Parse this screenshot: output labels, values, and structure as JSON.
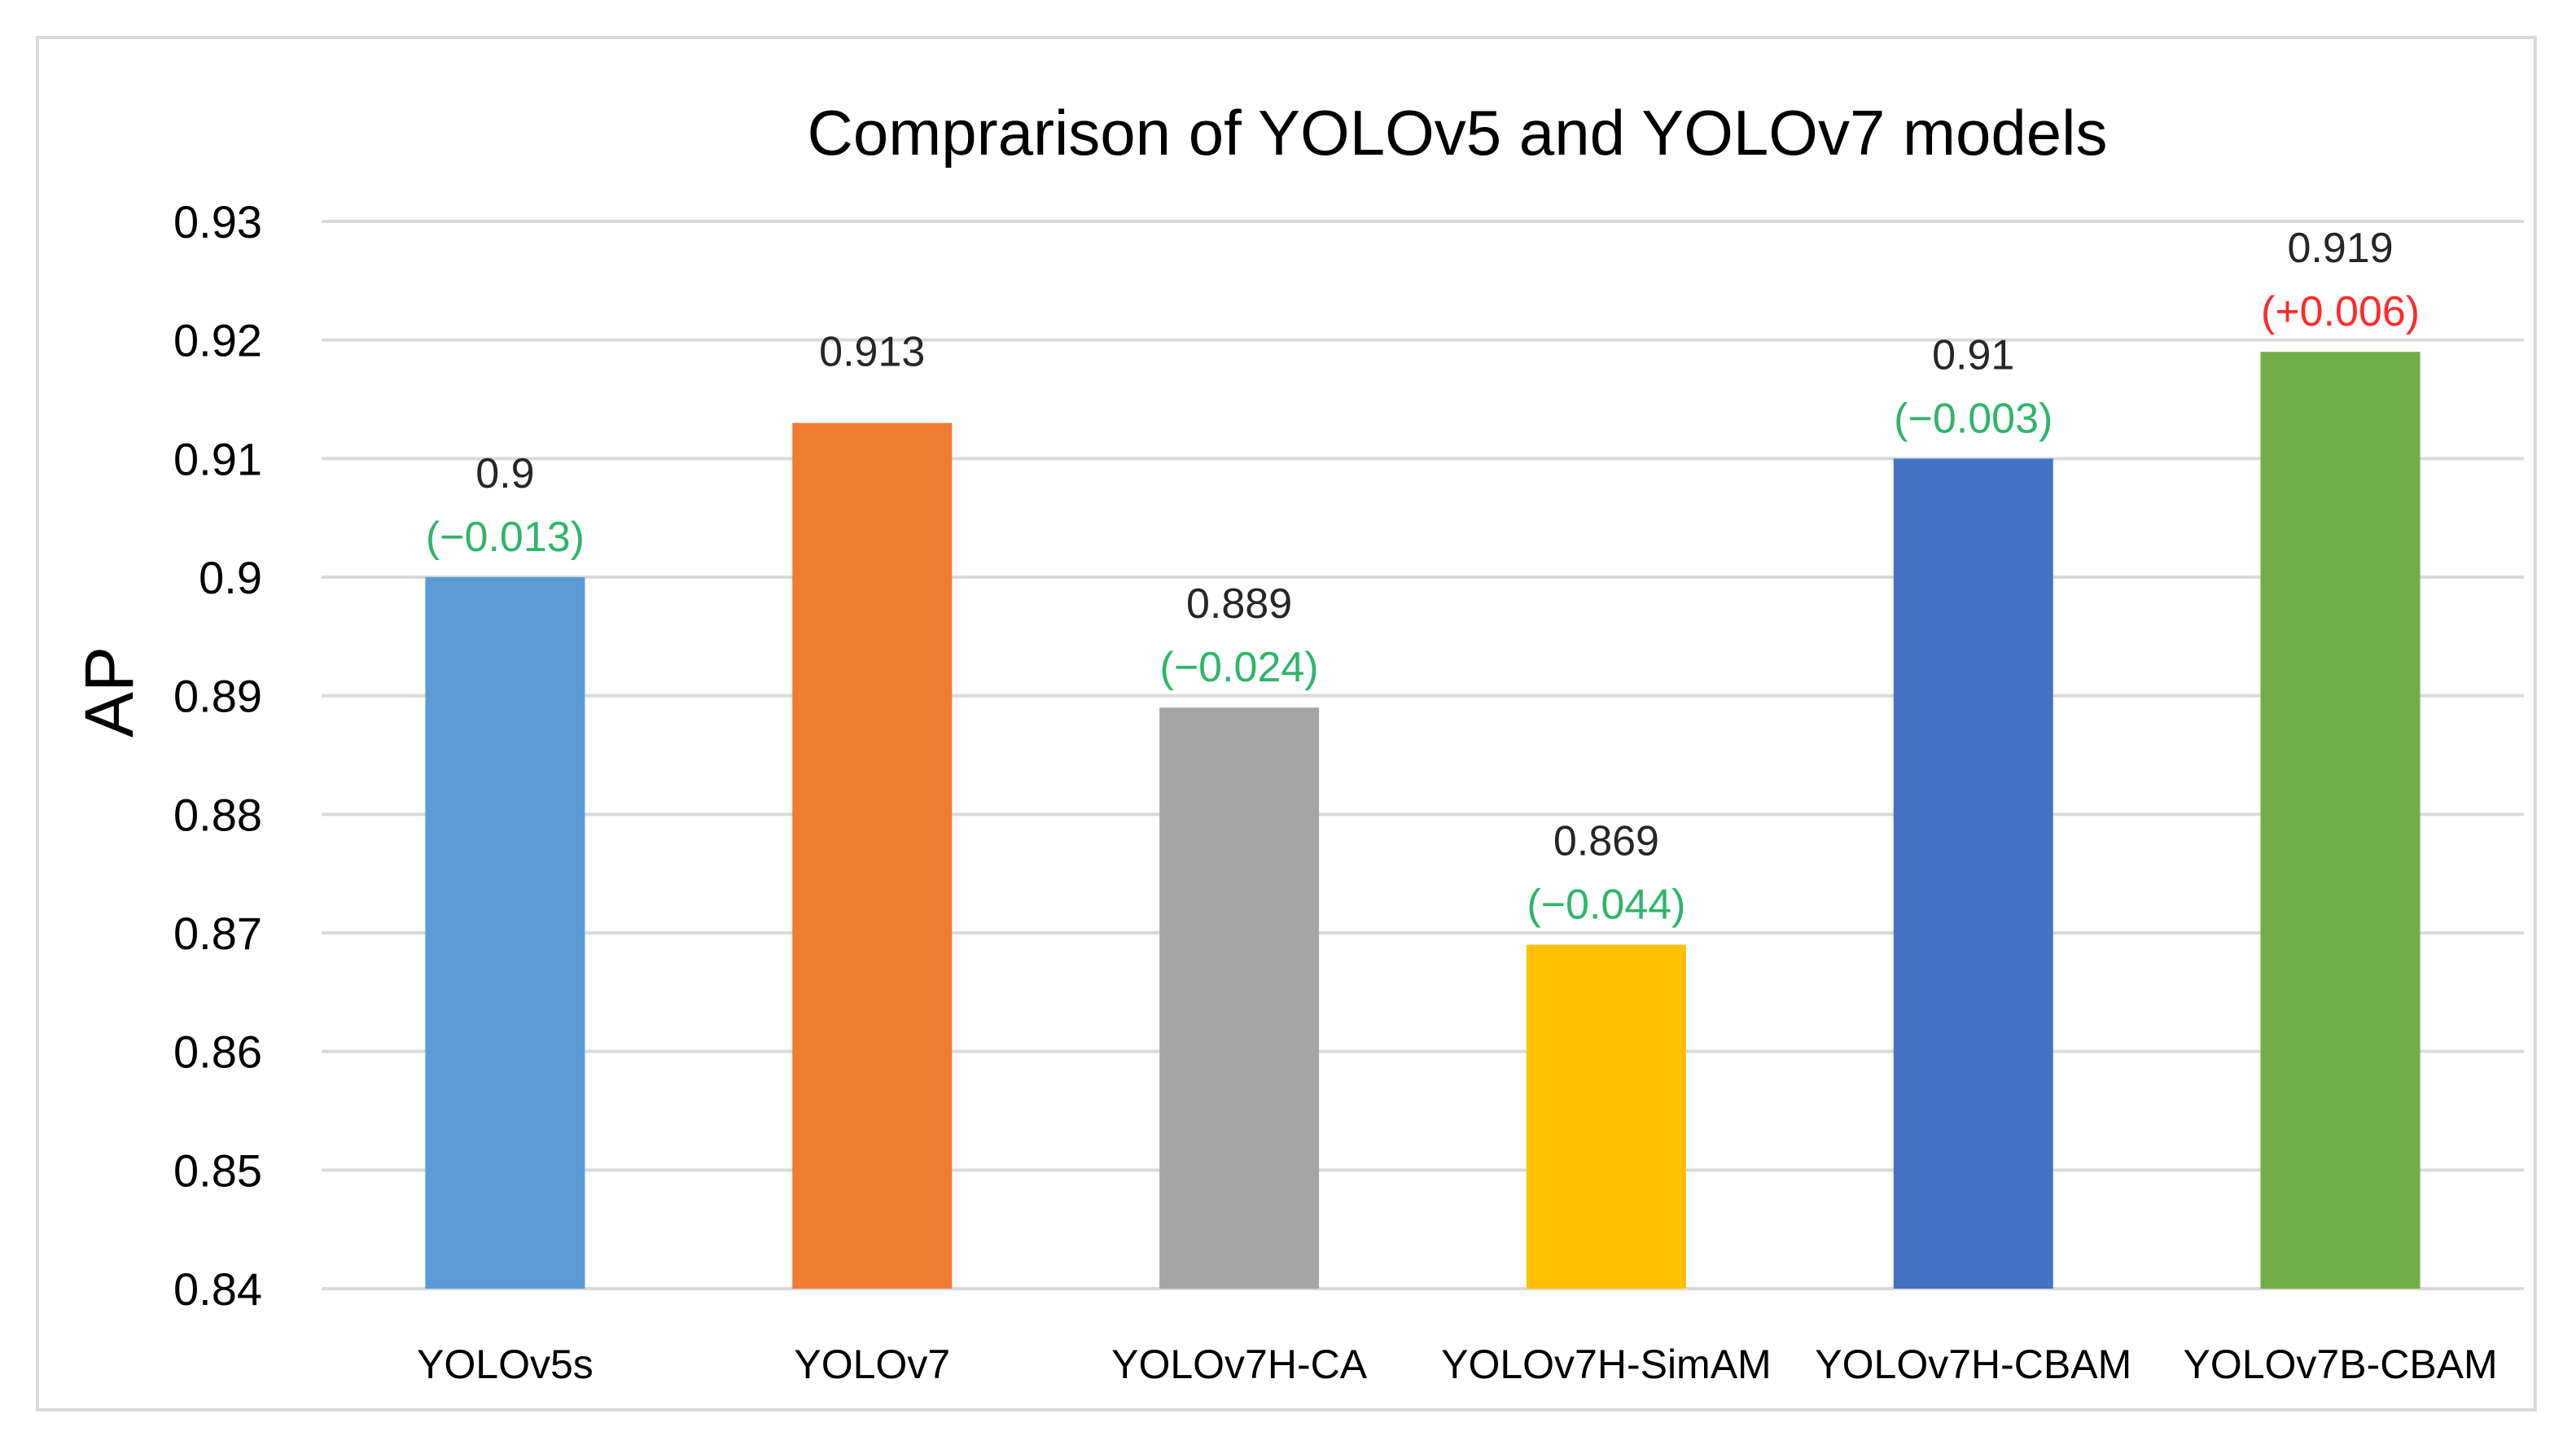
{
  "chart_data": {
    "type": "bar",
    "title": "Comprarison of YOLOv5 and YOLOv7 models",
    "xlabel": "",
    "ylabel": "AP",
    "ylim": [
      0.84,
      0.93
    ],
    "ytick_step": 0.01,
    "yticks": [
      "0.84",
      "0.85",
      "0.86",
      "0.87",
      "0.88",
      "0.89",
      "0.9",
      "0.91",
      "0.92",
      "0.93"
    ],
    "grid": true,
    "legend": "none",
    "categories": [
      "YOLOv5s",
      "YOLOv7",
      "YOLOv7H-CA",
      "YOLOv7H-SimAM",
      "YOLOv7H-CBAM",
      "YOLOv7B-CBAM"
    ],
    "values": [
      0.9,
      0.913,
      0.889,
      0.869,
      0.91,
      0.919
    ],
    "value_labels": [
      "0.9",
      "0.913",
      "0.889",
      "0.869",
      "0.91",
      "0.919"
    ],
    "delta_labels": [
      "(−0.013)",
      "",
      "(−0.024)",
      "(−0.044)",
      "(−0.003)",
      "(+0.006)"
    ],
    "bar_colors": [
      "#5b9bd5",
      "#ed7d31",
      "#a5a5a5",
      "#ffc000",
      "#4472c4",
      "#70ad47"
    ],
    "delta_colors": [
      "#2fb56a",
      "",
      "#2fb56a",
      "#2fb56a",
      "#2fb56a",
      "#ff2a2a"
    ],
    "grid_color": "#d9d9d9",
    "frame_color": "#d9d9d9"
  }
}
